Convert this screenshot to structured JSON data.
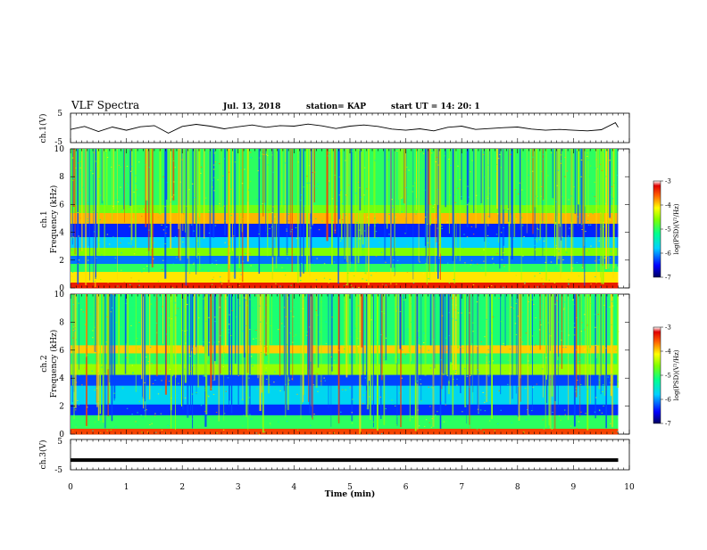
{
  "header": {
    "title": "VLF Spectra",
    "date": "Jul. 13, 2018",
    "station": "station= KAP",
    "start": "start UT = 14: 20: 1"
  },
  "chart_data": [
    {
      "type": "line",
      "panel": "ch1",
      "ylabel": "ch.1(V)",
      "xlim": [
        0,
        10
      ],
      "ylim": [
        -5,
        5
      ],
      "yticks": [
        "5",
        "-5"
      ],
      "series": [
        {
          "x": [
            0,
            0.25,
            0.5,
            0.75,
            1.0,
            1.25,
            1.5,
            1.75,
            2.0,
            2.25,
            2.5,
            2.75,
            3.0,
            3.25,
            3.5,
            3.75,
            4.0,
            4.25,
            4.5,
            4.75,
            5.0,
            5.25,
            5.5,
            5.75,
            6.0,
            6.25,
            6.5,
            6.75,
            7.0,
            7.25,
            7.5,
            7.75,
            8.0,
            8.25,
            8.5,
            8.75,
            9.0,
            9.25,
            9.5,
            9.75,
            9.8
          ],
          "values": [
            -0.5,
            0.5,
            -1.2,
            0.3,
            -0.8,
            0.4,
            0.8,
            -1.8,
            0.5,
            1.2,
            0.6,
            -0.3,
            0.4,
            1.0,
            0.2,
            0.8,
            0.6,
            1.3,
            0.7,
            -0.2,
            0.6,
            1.0,
            0.5,
            -0.4,
            -0.8,
            -0.3,
            -1.0,
            0.2,
            0.6,
            -0.5,
            -0.2,
            0.1,
            0.3,
            -0.4,
            -0.8,
            -0.5,
            -0.8,
            -1.0,
            -0.6,
            1.8,
            0.2
          ]
        }
      ]
    },
    {
      "type": "heatmap",
      "panel": "ch2",
      "title": "ch.1",
      "ylabel": "Frequency (kHz)",
      "xlim": [
        0,
        10
      ],
      "ylim": [
        0,
        10
      ],
      "yticks": [
        "0",
        "2",
        "4",
        "6",
        "8",
        "10"
      ],
      "colorbar": {
        "label": "log(PSD)(V²/Hz)",
        "min": -7,
        "max": -3,
        "ticks": [
          "-3",
          "-4",
          "-5",
          "-6",
          "-7"
        ]
      }
    },
    {
      "type": "heatmap",
      "panel": "ch3",
      "title": "ch.2",
      "ylabel": "Frequency (kHz)",
      "xlim": [
        0,
        10
      ],
      "ylim": [
        0,
        10
      ],
      "yticks": [
        "0",
        "2",
        "4",
        "6",
        "8",
        "10"
      ],
      "colorbar": {
        "label": "log(PSD)(V²/Hz)",
        "min": -7,
        "max": -3,
        "ticks": [
          "-3",
          "-4",
          "-5",
          "-6",
          "-7"
        ]
      }
    },
    {
      "type": "line",
      "panel": "ch3v",
      "ylabel": "ch.3(V)",
      "xlim": [
        0,
        10
      ],
      "ylim": [
        -5,
        5
      ],
      "yticks": [
        "5",
        "-5"
      ],
      "xlabel": "Time (min)",
      "xticks": [
        "0",
        "1",
        "2",
        "3",
        "4",
        "5",
        "6",
        "7",
        "8",
        "9",
        "10"
      ],
      "series": [
        {
          "x": [
            0,
            9.8
          ],
          "values": [
            -1.8,
            -1.8
          ]
        }
      ]
    }
  ]
}
